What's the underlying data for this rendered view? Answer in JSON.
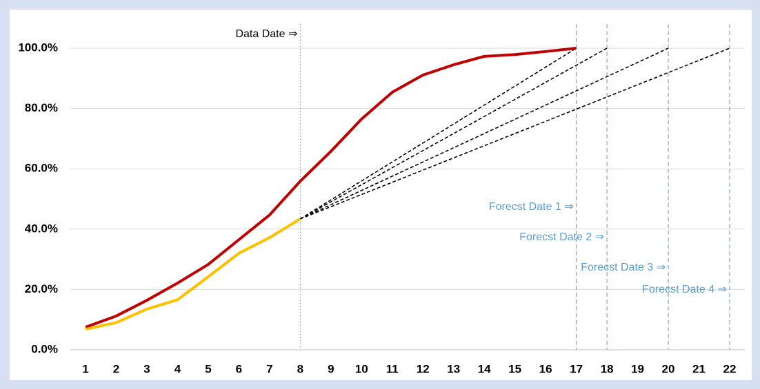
{
  "chart_data": {
    "type": "line",
    "xlim": [
      0.5,
      22.5
    ],
    "xticks": [
      1,
      2,
      3,
      4,
      5,
      6,
      7,
      8,
      9,
      10,
      11,
      12,
      13,
      14,
      15,
      16,
      17,
      18,
      19,
      20,
      21,
      22
    ],
    "ylim": [
      0,
      108
    ],
    "yticks": [
      {
        "value": 0,
        "label": "0.0%"
      },
      {
        "value": 20,
        "label": "20.0%"
      },
      {
        "value": 40,
        "label": "40.0%"
      },
      {
        "value": 60,
        "label": "60.0%"
      },
      {
        "value": 80,
        "label": "80.0%"
      },
      {
        "value": 100,
        "label": "100.0%"
      }
    ],
    "grid": true,
    "series": [
      {
        "color": "#c00000",
        "x": [
          1,
          2,
          3,
          4,
          5,
          6,
          7,
          8,
          9,
          10,
          11,
          12,
          13,
          14,
          15,
          16,
          17
        ],
        "values": [
          7.5,
          11.2,
          16.4,
          22.1,
          28.3,
          36.5,
          44.7,
          55.9,
          65.8,
          76.5,
          85.4,
          91.1,
          94.5,
          97.3,
          97.9,
          98.9,
          100
        ]
      },
      {
        "color": "#ffc000",
        "x": [
          1,
          2,
          3,
          4,
          5,
          6,
          7,
          8
        ],
        "values": [
          6.8,
          9,
          13.5,
          16.6,
          24.2,
          32,
          37.2,
          43.4
        ]
      }
    ],
    "data_date": {
      "text": "Data Date ⇒",
      "x": 8
    },
    "forecasts": [
      {
        "label": "Forecst Date 1 ⇒",
        "x": [
          8,
          17
        ],
        "values": [
          43.4,
          100
        ]
      },
      {
        "label": "Forecst Date 2 ⇒",
        "x": [
          8,
          18
        ],
        "values": [
          43.4,
          100
        ]
      },
      {
        "label": "Forecst Date 3 ⇒",
        "x": [
          8,
          20
        ],
        "values": [
          43.4,
          100
        ]
      },
      {
        "label": "Forecst Date 4 ⇒",
        "x": [
          8,
          22
        ],
        "values": [
          43.4,
          100
        ]
      }
    ]
  }
}
